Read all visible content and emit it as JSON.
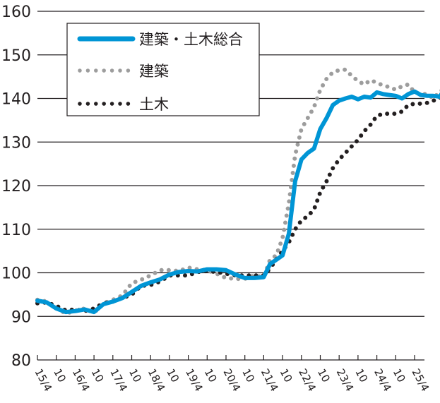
{
  "chart_data": {
    "type": "line",
    "title": "",
    "xlabel": "",
    "ylabel": "",
    "ylim": [
      80,
      160
    ],
    "yticks": [
      80,
      90,
      100,
      110,
      120,
      130,
      140,
      150,
      160
    ],
    "grid": "horizontal",
    "legend_position": "upper-left (inset box)",
    "xtick_labels": [
      "15/4",
      "10",
      "16/4",
      "10",
      "17/4",
      "10",
      "18/4",
      "10",
      "19/4",
      "10",
      "20/4",
      "10",
      "21/4",
      "10",
      "22/4",
      "10",
      "23/4",
      "10",
      "24/4",
      "10",
      "25/4"
    ],
    "x_period": "monthly, 2015/4 to 2025/4",
    "series": [
      {
        "name": "建築・土木総合",
        "style": "solid",
        "color": "#0095d5",
        "points": [
          [
            0,
            93.6
          ],
          [
            3,
            93.2
          ],
          [
            6,
            91.8
          ],
          [
            9,
            91.0
          ],
          [
            12,
            91.2
          ],
          [
            15,
            91.6
          ],
          [
            18,
            91.0
          ],
          [
            21,
            92.8
          ],
          [
            24,
            93.4
          ],
          [
            27,
            94.2
          ],
          [
            30,
            95.6
          ],
          [
            33,
            97.0
          ],
          [
            36,
            97.8
          ],
          [
            39,
            98.5
          ],
          [
            42,
            99.6
          ],
          [
            45,
            100.2
          ],
          [
            48,
            100.4
          ],
          [
            51,
            100.3
          ],
          [
            54,
            100.8
          ],
          [
            57,
            100.8
          ],
          [
            60,
            100.6
          ],
          [
            63,
            99.6
          ],
          [
            66,
            98.8
          ],
          [
            69,
            98.8
          ],
          [
            72,
            99.0
          ],
          [
            74,
            102.0
          ],
          [
            76,
            103.0
          ],
          [
            78,
            104.0
          ],
          [
            80,
            109.0
          ],
          [
            82,
            121.0
          ],
          [
            84,
            126.0
          ],
          [
            86,
            127.5
          ],
          [
            88,
            128.5
          ],
          [
            90,
            133.0
          ],
          [
            92,
            135.5
          ],
          [
            94,
            138.5
          ],
          [
            96,
            139.5
          ],
          [
            98,
            140.0
          ],
          [
            100,
            140.4
          ],
          [
            102,
            139.8
          ],
          [
            104,
            140.4
          ],
          [
            106,
            140.2
          ],
          [
            108,
            141.4
          ],
          [
            110,
            141.0
          ],
          [
            112,
            140.8
          ],
          [
            114,
            140.6
          ],
          [
            116,
            140.0
          ],
          [
            118,
            141.0
          ],
          [
            120,
            141.6
          ],
          [
            122,
            140.8
          ],
          [
            124,
            140.6
          ],
          [
            126,
            140.6
          ],
          [
            128,
            140.4
          ],
          [
            130,
            142.6
          ]
        ]
      },
      {
        "name": "建築",
        "style": "dotted",
        "color": "#9d9d9d",
        "points": [
          [
            0,
            93.8
          ],
          [
            3,
            93.4
          ],
          [
            6,
            92.0
          ],
          [
            9,
            90.6
          ],
          [
            12,
            91.3
          ],
          [
            15,
            91.8
          ],
          [
            18,
            90.8
          ],
          [
            21,
            93.0
          ],
          [
            24,
            93.8
          ],
          [
            27,
            94.8
          ],
          [
            30,
            97.6
          ],
          [
            33,
            98.4
          ],
          [
            36,
            99.4
          ],
          [
            39,
            100.6
          ],
          [
            42,
            100.6
          ],
          [
            45,
            100.4
          ],
          [
            48,
            101.2
          ],
          [
            51,
            100.8
          ],
          [
            54,
            100.6
          ],
          [
            57,
            99.8
          ],
          [
            60,
            98.8
          ],
          [
            63,
            98.6
          ],
          [
            66,
            98.6
          ],
          [
            69,
            99.4
          ],
          [
            72,
            99.0
          ],
          [
            74,
            103.0
          ],
          [
            76,
            104.0
          ],
          [
            78,
            108.0
          ],
          [
            80,
            116.0
          ],
          [
            82,
            127.0
          ],
          [
            84,
            133.0
          ],
          [
            86,
            135.5
          ],
          [
            88,
            138.0
          ],
          [
            90,
            142.0
          ],
          [
            92,
            144.5
          ],
          [
            94,
            146.0
          ],
          [
            96,
            146.5
          ],
          [
            98,
            146.6
          ],
          [
            100,
            145.2
          ],
          [
            102,
            144.0
          ],
          [
            104,
            143.2
          ],
          [
            106,
            144.2
          ],
          [
            108,
            143.6
          ],
          [
            110,
            143.0
          ],
          [
            112,
            142.6
          ],
          [
            114,
            142.0
          ],
          [
            116,
            142.8
          ],
          [
            118,
            143.2
          ],
          [
            120,
            141.4
          ],
          [
            122,
            141.0
          ],
          [
            124,
            141.0
          ],
          [
            126,
            140.0
          ],
          [
            128,
            141.6
          ],
          [
            130,
            142.4
          ]
        ]
      },
      {
        "name": "土木",
        "style": "dotted",
        "color": "#231f20",
        "points": [
          [
            0,
            93.0
          ],
          [
            3,
            93.2
          ],
          [
            6,
            92.4
          ],
          [
            9,
            91.4
          ],
          [
            12,
            91.6
          ],
          [
            15,
            91.2
          ],
          [
            18,
            91.8
          ],
          [
            21,
            93.0
          ],
          [
            24,
            93.4
          ],
          [
            27,
            94.2
          ],
          [
            30,
            95.0
          ],
          [
            33,
            97.0
          ],
          [
            36,
            97.2
          ],
          [
            39,
            98.0
          ],
          [
            42,
            99.4
          ],
          [
            45,
            99.4
          ],
          [
            48,
            99.4
          ],
          [
            51,
            100.2
          ],
          [
            54,
            100.4
          ],
          [
            57,
            100.2
          ],
          [
            60,
            99.8
          ],
          [
            63,
            99.4
          ],
          [
            66,
            99.4
          ],
          [
            69,
            99.4
          ],
          [
            72,
            99.4
          ],
          [
            74,
            101.0
          ],
          [
            76,
            103.0
          ],
          [
            78,
            105.0
          ],
          [
            80,
            107.0
          ],
          [
            82,
            110.0
          ],
          [
            84,
            112.0
          ],
          [
            86,
            113.0
          ],
          [
            88,
            114.5
          ],
          [
            90,
            118.5
          ],
          [
            92,
            121.0
          ],
          [
            94,
            124.0
          ],
          [
            96,
            126.0
          ],
          [
            98,
            127.5
          ],
          [
            100,
            129.0
          ],
          [
            102,
            130.5
          ],
          [
            104,
            132.5
          ],
          [
            106,
            134.0
          ],
          [
            108,
            136.0
          ],
          [
            110,
            136.5
          ],
          [
            112,
            136.5
          ],
          [
            114,
            136.5
          ],
          [
            116,
            137.0
          ],
          [
            118,
            138.5
          ],
          [
            120,
            138.8
          ],
          [
            122,
            138.8
          ],
          [
            124,
            139.0
          ],
          [
            126,
            139.5
          ],
          [
            128,
            140.0
          ],
          [
            130,
            142.8
          ]
        ]
      }
    ]
  },
  "legend": {
    "items": [
      {
        "label": "建築・土木総合",
        "style": "solid"
      },
      {
        "label": "建築",
        "style": "dotted-gray"
      },
      {
        "label": "土木",
        "style": "dotted-black"
      }
    ]
  },
  "colors": {
    "total": "#0095d5",
    "architecture": "#9d9d9d",
    "civil": "#231f20",
    "grid": "#231f20"
  }
}
